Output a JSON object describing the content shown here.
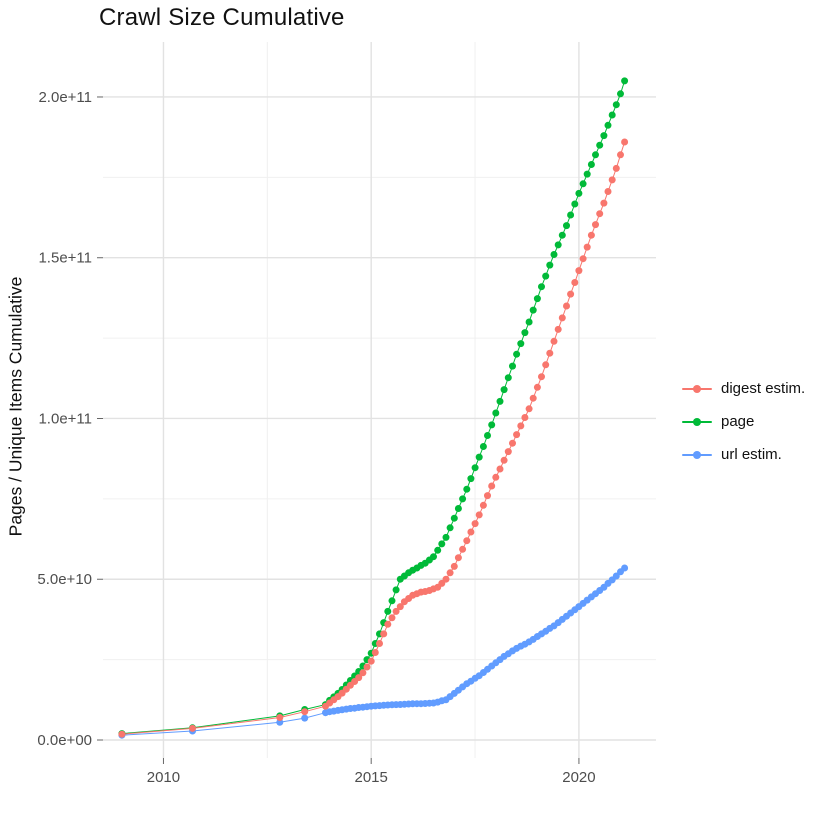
{
  "title": "Crawl Size Cumulative",
  "chart_data": {
    "type": "scatter",
    "title": "Crawl Size Cumulative",
    "xlabel": "",
    "ylabel": "Pages / Unique Items Cumulative",
    "value_unit_note": "y values stored in billions (1e9); axis labels shown in scientific notation",
    "xlim": [
      2008.545,
      2021.855
    ],
    "ylim_billions": [
      -5.6,
      217.1
    ],
    "grid": "on",
    "legend_position": "right",
    "x_ticks": [
      {
        "value": 2010,
        "label": "2010"
      },
      {
        "value": 2015,
        "label": "2015"
      },
      {
        "value": 2020,
        "label": "2020"
      }
    ],
    "x_minor_ticks": [
      2012.5,
      2017.5
    ],
    "y_ticks": [
      {
        "value": 0,
        "label": "0.0e+00"
      },
      {
        "value": 50,
        "label": "5.0e+10"
      },
      {
        "value": 100,
        "label": "1.0e+11"
      },
      {
        "value": 150,
        "label": "1.5e+11"
      },
      {
        "value": 200,
        "label": "2.0e+11"
      }
    ],
    "y_minor_ticks": [
      25,
      75,
      125,
      175
    ],
    "colors": {
      "digest": "#F8766D",
      "page": "#00BA38",
      "url": "#619CFF",
      "grid_major": "#E2E2E2",
      "grid_minor": "#F0F0F0",
      "tick_text": "#4d4d4d"
    },
    "legend": [
      {
        "label": "digest estim.",
        "color": "#F8766D",
        "series": "digest estim."
      },
      {
        "label": "page",
        "color": "#00BA38",
        "series": "page"
      },
      {
        "label": "url estim.",
        "color": "#619CFF",
        "series": "url estim."
      }
    ],
    "series": [
      {
        "name": "page",
        "color": "#00BA38",
        "points": [
          [
            2009.0,
            2.0
          ],
          [
            2010.7,
            3.8
          ],
          [
            2012.8,
            7.5
          ],
          [
            2013.4,
            9.5
          ],
          [
            2013.9,
            11.0
          ],
          [
            2014.0,
            12.3
          ],
          [
            2014.1,
            13.4
          ],
          [
            2014.2,
            14.5
          ],
          [
            2014.3,
            15.7
          ],
          [
            2014.4,
            17.1
          ],
          [
            2014.5,
            18.5
          ],
          [
            2014.6,
            19.9
          ],
          [
            2014.7,
            21.3
          ],
          [
            2014.8,
            23.0
          ],
          [
            2014.9,
            25.0
          ],
          [
            2015.0,
            27.0
          ],
          [
            2015.1,
            30.0
          ],
          [
            2015.2,
            33.0
          ],
          [
            2015.3,
            36.5
          ],
          [
            2015.4,
            40.0
          ],
          [
            2015.5,
            43.3
          ],
          [
            2015.6,
            46.7
          ],
          [
            2015.7,
            50.0
          ],
          [
            2015.8,
            51.0
          ],
          [
            2015.9,
            52.0
          ],
          [
            2016.0,
            52.8
          ],
          [
            2016.1,
            53.5
          ],
          [
            2016.2,
            54.3
          ],
          [
            2016.3,
            55.0
          ],
          [
            2016.4,
            56.0
          ],
          [
            2016.5,
            57.0
          ],
          [
            2016.6,
            59.0
          ],
          [
            2016.7,
            61.0
          ],
          [
            2016.8,
            63.0
          ],
          [
            2016.9,
            66.0
          ],
          [
            2017.0,
            69.0
          ],
          [
            2017.1,
            72.0
          ],
          [
            2017.2,
            75.0
          ],
          [
            2017.3,
            78.0
          ],
          [
            2017.4,
            81.3
          ],
          [
            2017.5,
            84.7
          ],
          [
            2017.6,
            88.0
          ],
          [
            2017.7,
            91.3
          ],
          [
            2017.8,
            94.7
          ],
          [
            2017.9,
            98.0
          ],
          [
            2018.0,
            101.7
          ],
          [
            2018.1,
            105.3
          ],
          [
            2018.2,
            109
          ],
          [
            2018.3,
            112.7
          ],
          [
            2018.4,
            116.3
          ],
          [
            2018.5,
            120
          ],
          [
            2018.6,
            123.3
          ],
          [
            2018.7,
            126.7
          ],
          [
            2018.8,
            130
          ],
          [
            2018.9,
            133.7
          ],
          [
            2019.0,
            137.3
          ],
          [
            2019.1,
            141
          ],
          [
            2019.2,
            144.3
          ],
          [
            2019.3,
            147.7
          ],
          [
            2019.4,
            151
          ],
          [
            2019.5,
            154
          ],
          [
            2019.6,
            157
          ],
          [
            2019.7,
            160
          ],
          [
            2019.8,
            163.3
          ],
          [
            2019.9,
            166.7
          ],
          [
            2020.0,
            170
          ],
          [
            2020.1,
            173
          ],
          [
            2020.2,
            176
          ],
          [
            2020.3,
            179
          ],
          [
            2020.4,
            182
          ],
          [
            2020.5,
            185
          ],
          [
            2020.6,
            188
          ],
          [
            2020.7,
            191.2
          ],
          [
            2020.8,
            194.4
          ],
          [
            2020.9,
            197.6
          ],
          [
            2021.0,
            201
          ],
          [
            2021.1,
            205
          ]
        ]
      },
      {
        "name": "url estim.",
        "color": "#619CFF",
        "points": [
          [
            2009.0,
            1.5
          ],
          [
            2010.7,
            2.8
          ],
          [
            2012.8,
            5.5
          ],
          [
            2013.4,
            6.8
          ],
          [
            2013.9,
            8.5
          ],
          [
            2014.0,
            8.8
          ],
          [
            2014.1,
            9.0
          ],
          [
            2014.2,
            9.2
          ],
          [
            2014.3,
            9.4
          ],
          [
            2014.4,
            9.6
          ],
          [
            2014.5,
            9.8
          ],
          [
            2014.6,
            9.9
          ],
          [
            2014.7,
            10.1
          ],
          [
            2014.8,
            10.2
          ],
          [
            2014.9,
            10.35
          ],
          [
            2015.0,
            10.5
          ],
          [
            2015.1,
            10.6
          ],
          [
            2015.2,
            10.7
          ],
          [
            2015.3,
            10.8
          ],
          [
            2015.4,
            10.9
          ],
          [
            2015.5,
            10.95
          ],
          [
            2015.6,
            11.0
          ],
          [
            2015.7,
            11.05
          ],
          [
            2015.8,
            11.1
          ],
          [
            2015.9,
            11.2
          ],
          [
            2016.0,
            11.25
          ],
          [
            2016.1,
            11.3
          ],
          [
            2016.2,
            11.3
          ],
          [
            2016.3,
            11.35
          ],
          [
            2016.4,
            11.45
          ],
          [
            2016.5,
            11.5
          ],
          [
            2016.6,
            11.8
          ],
          [
            2016.7,
            12.2
          ],
          [
            2016.8,
            12.5
          ],
          [
            2016.9,
            13.5
          ],
          [
            2017.0,
            14.5
          ],
          [
            2017.1,
            15.5
          ],
          [
            2017.2,
            16.5
          ],
          [
            2017.3,
            17.5
          ],
          [
            2017.4,
            18.3
          ],
          [
            2017.5,
            19.2
          ],
          [
            2017.6,
            20
          ],
          [
            2017.7,
            21
          ],
          [
            2017.8,
            22
          ],
          [
            2017.9,
            23
          ],
          [
            2018.0,
            24
          ],
          [
            2018.1,
            25
          ],
          [
            2018.2,
            26
          ],
          [
            2018.3,
            26.8
          ],
          [
            2018.4,
            27.7
          ],
          [
            2018.5,
            28.5
          ],
          [
            2018.6,
            29.2
          ],
          [
            2018.7,
            29.8
          ],
          [
            2018.8,
            30.5
          ],
          [
            2018.9,
            31.3
          ],
          [
            2019.0,
            32.2
          ],
          [
            2019.1,
            33
          ],
          [
            2019.2,
            33.8
          ],
          [
            2019.3,
            34.7
          ],
          [
            2019.4,
            35.5
          ],
          [
            2019.5,
            36.5
          ],
          [
            2019.6,
            37.5
          ],
          [
            2019.7,
            38.5
          ],
          [
            2019.8,
            39.5
          ],
          [
            2019.9,
            40.5
          ],
          [
            2020.0,
            41.5
          ],
          [
            2020.1,
            42.5
          ],
          [
            2020.2,
            43.5
          ],
          [
            2020.3,
            44.5
          ],
          [
            2020.4,
            45.5
          ],
          [
            2020.5,
            46.5
          ],
          [
            2020.6,
            47.5
          ],
          [
            2020.7,
            48.7
          ],
          [
            2020.8,
            49.8
          ],
          [
            2020.9,
            51
          ],
          [
            2021.0,
            52.3
          ],
          [
            2021.1,
            53.5
          ]
        ]
      },
      {
        "name": "digest estim.",
        "color": "#F8766D",
        "points": [
          [
            2009.0,
            1.8
          ],
          [
            2010.7,
            3.6
          ],
          [
            2012.8,
            7.0
          ],
          [
            2013.4,
            8.8
          ],
          [
            2013.9,
            10.5
          ],
          [
            2014.0,
            11.5
          ],
          [
            2014.1,
            12.5
          ],
          [
            2014.2,
            13.5
          ],
          [
            2014.3,
            14.6
          ],
          [
            2014.4,
            15.8
          ],
          [
            2014.5,
            17
          ],
          [
            2014.6,
            18.2
          ],
          [
            2014.7,
            19.4
          ],
          [
            2014.8,
            20.9
          ],
          [
            2014.9,
            22.7
          ],
          [
            2015.0,
            24.5
          ],
          [
            2015.1,
            27.2
          ],
          [
            2015.2,
            30
          ],
          [
            2015.3,
            33
          ],
          [
            2015.4,
            36
          ],
          [
            2015.5,
            38
          ],
          [
            2015.6,
            40
          ],
          [
            2015.7,
            41.5
          ],
          [
            2015.8,
            43
          ],
          [
            2015.9,
            44
          ],
          [
            2016.0,
            45
          ],
          [
            2016.1,
            45.5
          ],
          [
            2016.2,
            46
          ],
          [
            2016.3,
            46.2
          ],
          [
            2016.4,
            46.5
          ],
          [
            2016.5,
            47
          ],
          [
            2016.6,
            47.5
          ],
          [
            2016.7,
            48.7
          ],
          [
            2016.8,
            50
          ],
          [
            2016.9,
            52
          ],
          [
            2017.0,
            54
          ],
          [
            2017.1,
            56.7
          ],
          [
            2017.2,
            59.3
          ],
          [
            2017.3,
            62
          ],
          [
            2017.4,
            64.7
          ],
          [
            2017.5,
            67.3
          ],
          [
            2017.6,
            70
          ],
          [
            2017.7,
            73
          ],
          [
            2017.8,
            76
          ],
          [
            2017.9,
            79
          ],
          [
            2018.0,
            81.7
          ],
          [
            2018.1,
            84.3
          ],
          [
            2018.2,
            87
          ],
          [
            2018.3,
            89.7
          ],
          [
            2018.4,
            92.3
          ],
          [
            2018.5,
            95
          ],
          [
            2018.6,
            97.7
          ],
          [
            2018.7,
            100.3
          ],
          [
            2018.8,
            103
          ],
          [
            2018.9,
            106.3
          ],
          [
            2019.0,
            109.7
          ],
          [
            2019.1,
            113
          ],
          [
            2019.2,
            116.7
          ],
          [
            2019.3,
            120.3
          ],
          [
            2019.4,
            124
          ],
          [
            2019.5,
            127.7
          ],
          [
            2019.6,
            131.3
          ],
          [
            2019.7,
            135
          ],
          [
            2019.8,
            138.7
          ],
          [
            2019.9,
            142.3
          ],
          [
            2020.0,
            146
          ],
          [
            2020.1,
            149.7
          ],
          [
            2020.2,
            153.3
          ],
          [
            2020.3,
            157
          ],
          [
            2020.4,
            160.3
          ],
          [
            2020.5,
            163.7
          ],
          [
            2020.6,
            167
          ],
          [
            2020.7,
            170.6
          ],
          [
            2020.8,
            174.2
          ],
          [
            2020.9,
            177.8
          ],
          [
            2021.0,
            182
          ],
          [
            2021.1,
            186
          ]
        ]
      }
    ]
  }
}
